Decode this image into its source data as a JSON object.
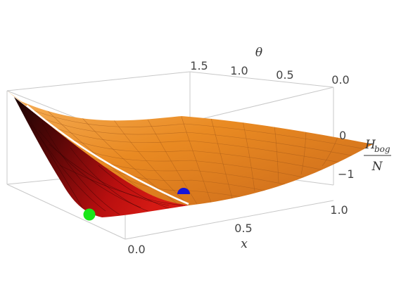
{
  "chart_data": {
    "type": "surface3d",
    "title": "",
    "axes": {
      "x": {
        "label": "x",
        "ticks": [
          "0.0",
          "0.5",
          "1.0"
        ],
        "range": [
          0,
          1
        ]
      },
      "theta": {
        "label": "θ",
        "ticks": [
          "0.0",
          "0.5",
          "1.0",
          "1.5"
        ],
        "range": [
          0,
          1.57
        ]
      },
      "z": {
        "label_main": "H",
        "label_sub": "bog",
        "label_den": "N",
        "ticks": [
          "0",
          "−1"
        ]
      }
    },
    "colors": {
      "surface_top": "#e98a22",
      "surface_top_light": "#f3a64a",
      "surface_bottom": "#b80f0f",
      "surface_dark": "#1a0404",
      "mesh": "#9a5216",
      "box": "#c8c8c8",
      "crease": "#ffffff"
    },
    "markers": [
      {
        "name": "green-point",
        "color": "#19e619"
      },
      {
        "name": "blue-point",
        "color": "#1515d8"
      }
    ]
  }
}
